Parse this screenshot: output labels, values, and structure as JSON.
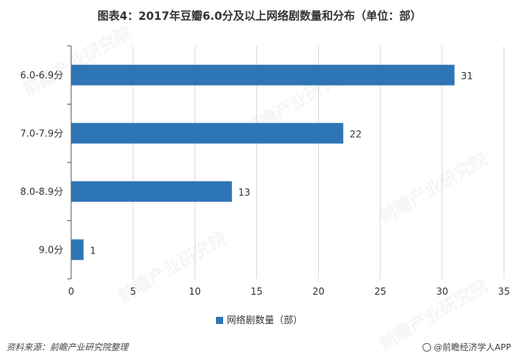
{
  "chart_data": {
    "type": "bar",
    "orientation": "horizontal",
    "title": "图表4：2017年豆瓣6.0分及以上网络剧数量和分布（单位：部）",
    "categories": [
      "6.0-6.9分",
      "7.0-7.9分",
      "8.0-8.9分",
      "9.0分"
    ],
    "series": [
      {
        "name": "网络剧数量（部）",
        "values": [
          31,
          22,
          13,
          1
        ]
      }
    ],
    "xlim": [
      0,
      35
    ],
    "xticks": [
      0,
      5,
      10,
      15,
      20,
      25,
      30,
      35
    ],
    "grid": "vertical",
    "legend": "bottom",
    "colors": {
      "bar": "#2e75b6",
      "grid": "#d9d9d9",
      "axis": "#595959"
    }
  },
  "footer": {
    "source": "资料来源：前瞻产业研究院整理",
    "brand": "@前瞻经济学人APP"
  }
}
